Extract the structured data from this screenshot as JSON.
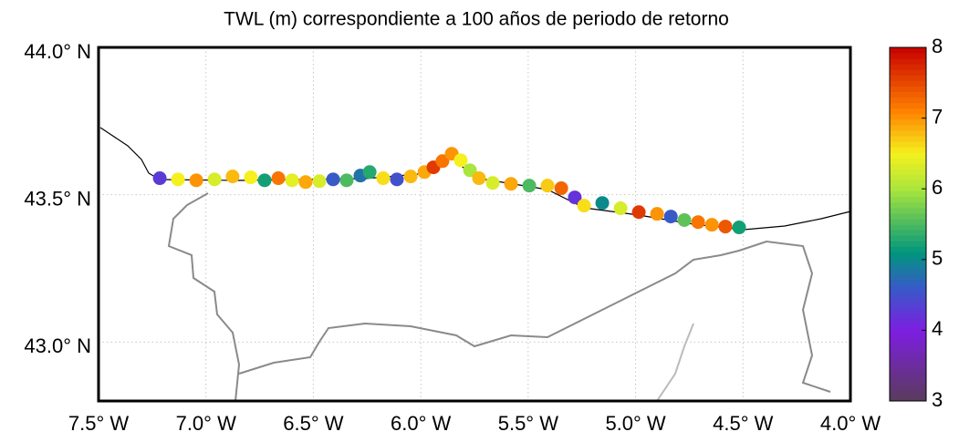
{
  "chart_data": {
    "type": "scatter",
    "title": "TWL (m) correspondiente a 100 años de periodo de retorno",
    "xlim": [
      -7.5,
      -4.0
    ],
    "ylim": [
      42.8,
      44.0
    ],
    "xticks": [
      {
        "value": -7.5,
        "label": "7.5° W"
      },
      {
        "value": -7.0,
        "label": "7.0° W"
      },
      {
        "value": -6.5,
        "label": "6.5° W"
      },
      {
        "value": -6.0,
        "label": "6.0° W"
      },
      {
        "value": -5.5,
        "label": "5.5° W"
      },
      {
        "value": -5.0,
        "label": "5.0° W"
      },
      {
        "value": -4.5,
        "label": "4.5° W"
      },
      {
        "value": -4.0,
        "label": "4.0° W"
      }
    ],
    "yticks": [
      {
        "value": 44.0,
        "label": "44.0° N"
      },
      {
        "value": 43.5,
        "label": "43.5° N"
      },
      {
        "value": 43.0,
        "label": "43.0° N"
      }
    ],
    "grid": true,
    "clim": [
      3,
      8
    ],
    "cticks": [
      3,
      4,
      5,
      6,
      7,
      8
    ],
    "x": [
      -7.215,
      -7.13,
      -7.045,
      -6.96,
      -6.876,
      -6.791,
      -6.727,
      -6.663,
      -6.599,
      -6.536,
      -6.472,
      -6.408,
      -6.345,
      -6.281,
      -6.238,
      -6.175,
      -6.111,
      -6.047,
      -5.983,
      -5.941,
      -5.899,
      -5.856,
      -5.814,
      -5.771,
      -5.729,
      -5.665,
      -5.58,
      -5.495,
      -5.41,
      -5.346,
      -5.283,
      -5.24,
      -5.155,
      -5.07,
      -4.985,
      -4.9,
      -4.836,
      -4.773,
      -4.709,
      -4.645,
      -4.582,
      -4.518
    ],
    "y": [
      43.556,
      43.552,
      43.549,
      43.552,
      43.562,
      43.559,
      43.549,
      43.556,
      43.549,
      43.543,
      43.546,
      43.552,
      43.549,
      43.565,
      43.577,
      43.556,
      43.552,
      43.562,
      43.577,
      43.593,
      43.614,
      43.639,
      43.617,
      43.583,
      43.556,
      43.54,
      43.537,
      43.531,
      43.531,
      43.522,
      43.491,
      43.463,
      43.472,
      43.454,
      43.441,
      43.435,
      43.426,
      43.414,
      43.407,
      43.398,
      43.392,
      43.389
    ],
    "values": [
      4.3,
      6.5,
      7,
      6.3,
      6.8,
      6.5,
      5.2,
      7.2,
      6.4,
      6.9,
      6.3,
      4.6,
      5.5,
      4.8,
      5.3,
      6.6,
      4.5,
      6.8,
      6.9,
      7.6,
      7.2,
      7.0,
      6.5,
      6.0,
      6.8,
      6.3,
      6.9,
      5.5,
      6.7,
      7.3,
      4.2,
      6.6,
      5.0,
      6.3,
      7.6,
      7.0,
      4.6,
      5.6,
      7.2,
      7.0,
      7.4,
      5.2
    ]
  }
}
